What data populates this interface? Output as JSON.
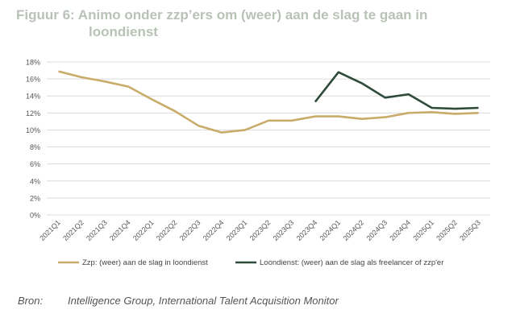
{
  "title_line1": "Figuur 6: Animo onder zzp’ers om (weer) aan de slag te gaan in",
  "title_line2": "loondienst",
  "chart_data": {
    "type": "line",
    "title": "Figuur 6: Animo onder zzp’ers om (weer) aan de slag te gaan in loondienst",
    "xlabel": "",
    "ylabel": "",
    "ylim": [
      0,
      18
    ],
    "yticks": [
      "0%",
      "2%",
      "4%",
      "6%",
      "8%",
      "10%",
      "12%",
      "14%",
      "16%",
      "18%"
    ],
    "grid": true,
    "legend_position": "bottom",
    "categories": [
      "2021Q1",
      "2021Q2",
      "2021Q3",
      "2021Q4",
      "2022Q1",
      "2022Q2",
      "2022Q3",
      "2022Q4",
      "2023Q1",
      "2023Q2",
      "2023Q3",
      "2023Q4",
      "2024Q1",
      "2024Q2",
      "2024Q3",
      "2024Q4",
      "2025Q1",
      "2025Q2",
      "2025Q3"
    ],
    "series": [
      {
        "name": "Zzp: (weer) aan de slag in loondienst",
        "color": "#c9ab6a",
        "values": [
          16.9,
          16.2,
          15.7,
          15.1,
          13.6,
          12.2,
          10.5,
          9.7,
          10.0,
          11.1,
          11.1,
          11.6,
          11.6,
          11.3,
          11.5,
          12.0,
          12.1,
          11.9,
          12.0
        ]
      },
      {
        "name": "Loondienst: (weer) aan de slag als freelancer of zzp'er",
        "color": "#2e4a3a",
        "values": [
          null,
          null,
          null,
          null,
          null,
          null,
          null,
          null,
          null,
          null,
          null,
          13.3,
          16.8,
          15.5,
          13.8,
          14.2,
          12.6,
          12.5,
          12.6
        ]
      }
    ]
  },
  "source_label": "Bron:",
  "source_text": "Intelligence Group, International Talent Acquisition Monitor"
}
